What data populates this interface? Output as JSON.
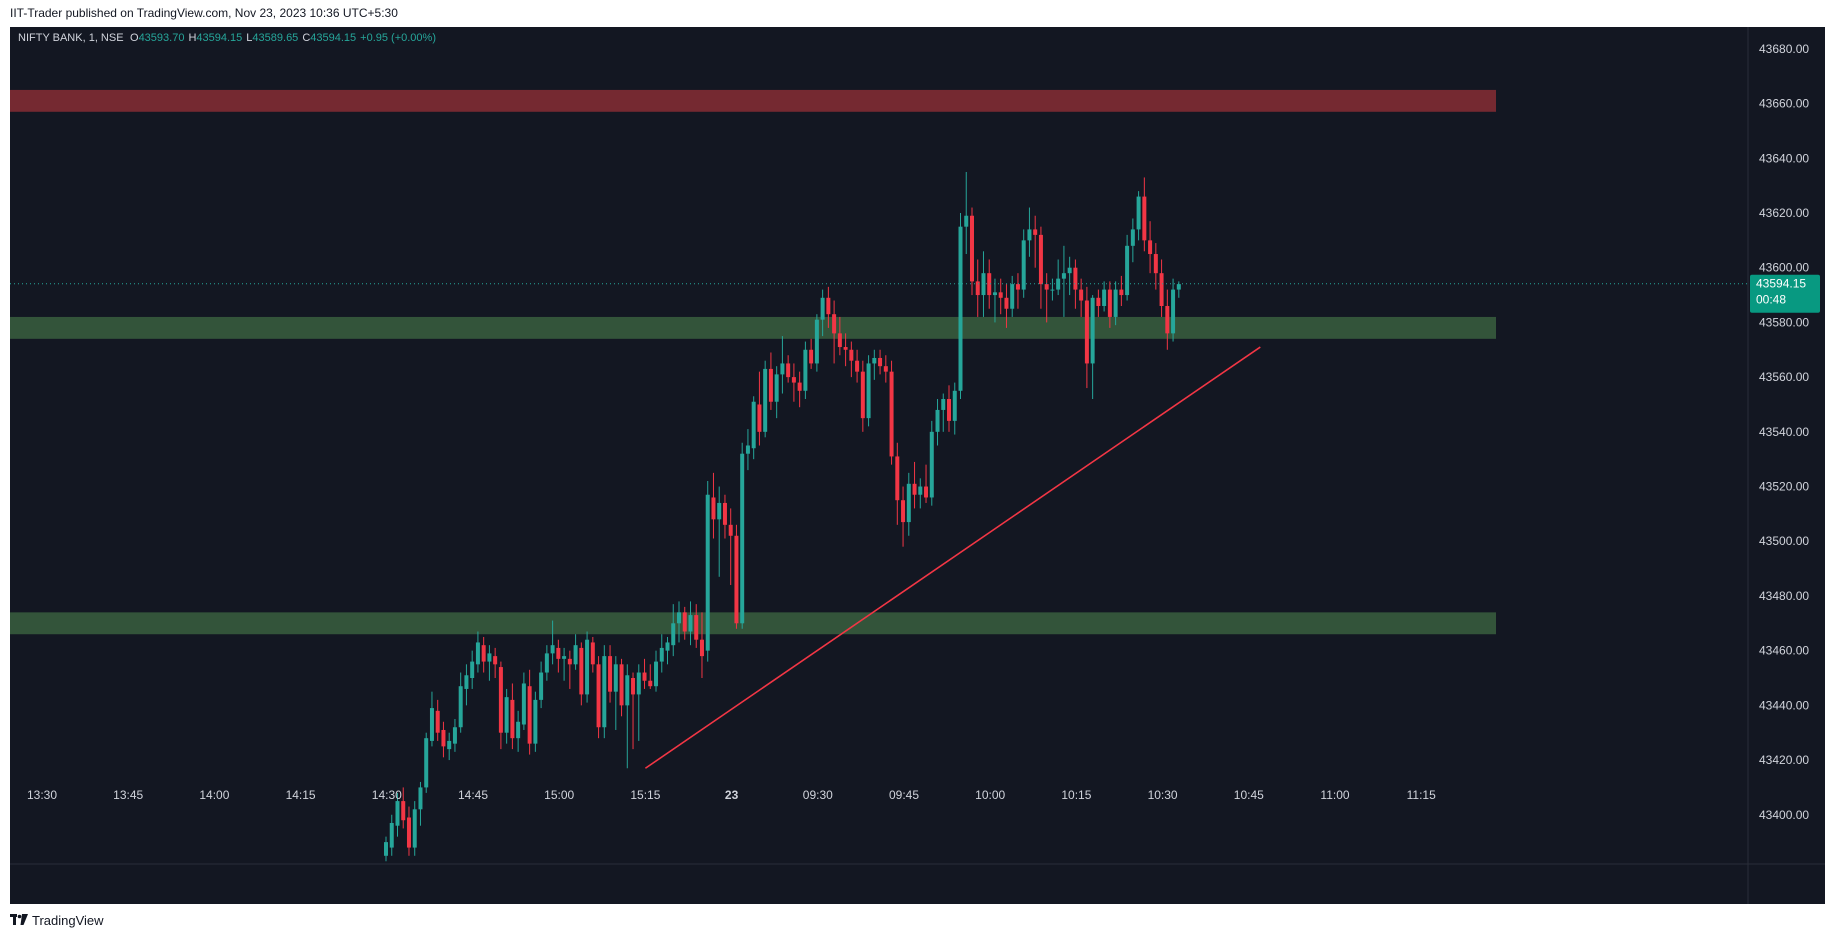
{
  "header": {
    "published_text": "IIT-Trader published on TradingView.com, Nov 23, 2023 10:36 UTC+5:30"
  },
  "footer": {
    "brand": "TradingView",
    "logo": "tradingview-logo-icon"
  },
  "colors": {
    "background": "#131722",
    "up": "#26a69a",
    "down": "#f23645",
    "supply_zone": "#7a2a33",
    "demand_zone": "#35573c",
    "trendline": "#f23645",
    "price_label_bg": "#089981",
    "axis_text": "#d1d4dc"
  },
  "legend": {
    "symbol": "NIFTY BANK, 1, NSE",
    "o_label": "O",
    "o_value": "43593.70",
    "h_label": "H",
    "h_value": "43594.15",
    "l_label": "L",
    "l_value": "43589.65",
    "c_label": "C",
    "c_value": "43594.15",
    "change": "+0.95 (+0.00%)"
  },
  "price_label": {
    "price": "43594.15",
    "countdown": "00:48"
  },
  "chart_data": {
    "type": "candlestick",
    "symbol": "NIFTY BANK",
    "interval": "1",
    "exchange": "NSE",
    "current_price": 43594.15,
    "y_range": [
      43382,
      43688
    ],
    "y_ticks": [
      "43400.00",
      "43420.00",
      "43440.00",
      "43460.00",
      "43480.00",
      "43500.00",
      "43520.00",
      "43540.00",
      "43560.00",
      "43580.00",
      "43600.00",
      "43620.00",
      "43640.00",
      "43660.00",
      "43680.00"
    ],
    "x_ticks": [
      "13:30",
      "13:45",
      "14:00",
      "14:15",
      "14:30",
      "14:45",
      "15:00",
      "15:15",
      "23",
      "09:30",
      "09:45",
      "10:00",
      "10:15",
      "10:30",
      "10:45",
      "11:00",
      "11:15"
    ],
    "grid": false,
    "zones": [
      {
        "type": "supply",
        "from": 43657,
        "to": 43665
      },
      {
        "type": "demand",
        "from": 43574,
        "to": 43582
      },
      {
        "type": "demand",
        "from": 43466,
        "to": 43474
      }
    ],
    "trendline": {
      "from": {
        "x": "15:15",
        "y": 43417
      },
      "to": {
        "x": "10:47",
        "y": 43571
      }
    },
    "candles": [
      {
        "o": 43385,
        "h": 43392,
        "l": 43383,
        "c": 43390
      },
      {
        "o": 43388,
        "h": 43400,
        "l": 43385,
        "c": 43397
      },
      {
        "o": 43396,
        "h": 43408,
        "l": 43392,
        "c": 43405
      },
      {
        "o": 43405,
        "h": 43410,
        "l": 43395,
        "c": 43398
      },
      {
        "o": 43399,
        "h": 43403,
        "l": 43385,
        "c": 43388
      },
      {
        "o": 43388,
        "h": 43405,
        "l": 43385,
        "c": 43402
      },
      {
        "o": 43402,
        "h": 43412,
        "l": 43396,
        "c": 43410
      },
      {
        "o": 43410,
        "h": 43430,
        "l": 43408,
        "c": 43428
      },
      {
        "o": 43427,
        "h": 43445,
        "l": 43425,
        "c": 43439
      },
      {
        "o": 43438,
        "h": 43442,
        "l": 43427,
        "c": 43430
      },
      {
        "o": 43431,
        "h": 43434,
        "l": 43421,
        "c": 43425
      },
      {
        "o": 43424,
        "h": 43430,
        "l": 43420,
        "c": 43427
      },
      {
        "o": 43426,
        "h": 43435,
        "l": 43423,
        "c": 43432
      },
      {
        "o": 43432,
        "h": 43452,
        "l": 43430,
        "c": 43447
      },
      {
        "o": 43446,
        "h": 43455,
        "l": 43440,
        "c": 43451
      },
      {
        "o": 43450,
        "h": 43460,
        "l": 43446,
        "c": 43456
      },
      {
        "o": 43455,
        "h": 43467,
        "l": 43452,
        "c": 43463
      },
      {
        "o": 43462,
        "h": 43465,
        "l": 43452,
        "c": 43456
      },
      {
        "o": 43456,
        "h": 43462,
        "l": 43449,
        "c": 43459
      },
      {
        "o": 43458,
        "h": 43461,
        "l": 43450,
        "c": 43455
      },
      {
        "o": 43454,
        "h": 43456,
        "l": 43424,
        "c": 43430
      },
      {
        "o": 43430,
        "h": 43446,
        "l": 43426,
        "c": 43443
      },
      {
        "o": 43442,
        "h": 43448,
        "l": 43424,
        "c": 43428
      },
      {
        "o": 43428,
        "h": 43438,
        "l": 43423,
        "c": 43434
      },
      {
        "o": 43433,
        "h": 43452,
        "l": 43431,
        "c": 43448
      },
      {
        "o": 43447,
        "h": 43453,
        "l": 43422,
        "c": 43426
      },
      {
        "o": 43426,
        "h": 43445,
        "l": 43423,
        "c": 43442
      },
      {
        "o": 43442,
        "h": 43456,
        "l": 43439,
        "c": 43452
      },
      {
        "o": 43452,
        "h": 43462,
        "l": 43449,
        "c": 43459
      },
      {
        "o": 43459,
        "h": 43471,
        "l": 43455,
        "c": 43462
      },
      {
        "o": 43461,
        "h": 43464,
        "l": 43452,
        "c": 43457
      },
      {
        "o": 43457,
        "h": 43461,
        "l": 43449,
        "c": 43458
      },
      {
        "o": 43457,
        "h": 43460,
        "l": 43446,
        "c": 43455
      },
      {
        "o": 43455,
        "h": 43466,
        "l": 43453,
        "c": 43462
      },
      {
        "o": 43461,
        "h": 43463,
        "l": 43440,
        "c": 43444
      },
      {
        "o": 43444,
        "h": 43467,
        "l": 43441,
        "c": 43464
      },
      {
        "o": 43463,
        "h": 43465,
        "l": 43452,
        "c": 43455
      },
      {
        "o": 43455,
        "h": 43458,
        "l": 43428,
        "c": 43432
      },
      {
        "o": 43432,
        "h": 43462,
        "l": 43428,
        "c": 43458
      },
      {
        "o": 43458,
        "h": 43462,
        "l": 43441,
        "c": 43445
      },
      {
        "o": 43445,
        "h": 43458,
        "l": 43431,
        "c": 43455
      },
      {
        "o": 43455,
        "h": 43457,
        "l": 43436,
        "c": 43440
      },
      {
        "o": 43440,
        "h": 43455,
        "l": 43417,
        "c": 43451
      },
      {
        "o": 43450,
        "h": 43452,
        "l": 43424,
        "c": 43444
      },
      {
        "o": 43444,
        "h": 43455,
        "l": 43427,
        "c": 43452
      },
      {
        "o": 43452,
        "h": 43457,
        "l": 43446,
        "c": 43449
      },
      {
        "o": 43449,
        "h": 43455,
        "l": 43446,
        "c": 43447
      },
      {
        "o": 43447,
        "h": 43460,
        "l": 43445,
        "c": 43456
      },
      {
        "o": 43456,
        "h": 43466,
        "l": 43452,
        "c": 43461
      },
      {
        "o": 43460,
        "h": 43465,
        "l": 43455,
        "c": 43463
      },
      {
        "o": 43462,
        "h": 43477,
        "l": 43458,
        "c": 43470
      },
      {
        "o": 43470,
        "h": 43478,
        "l": 43463,
        "c": 43474
      },
      {
        "o": 43474,
        "h": 43476,
        "l": 43464,
        "c": 43467
      },
      {
        "o": 43467,
        "h": 43478,
        "l": 43462,
        "c": 43473
      },
      {
        "o": 43473,
        "h": 43477,
        "l": 43461,
        "c": 43464
      },
      {
        "o": 43464,
        "h": 43474,
        "l": 43450,
        "c": 43458
      },
      {
        "o": 43460,
        "h": 43522,
        "l": 43456,
        "c": 43517
      },
      {
        "o": 43516,
        "h": 43525,
        "l": 43501,
        "c": 43508
      },
      {
        "o": 43508,
        "h": 43520,
        "l": 43487,
        "c": 43514
      },
      {
        "o": 43514,
        "h": 43517,
        "l": 43501,
        "c": 43506
      },
      {
        "o": 43506,
        "h": 43512,
        "l": 43484,
        "c": 43502
      },
      {
        "o": 43502,
        "h": 43506,
        "l": 43468,
        "c": 43470
      },
      {
        "o": 43470,
        "h": 43536,
        "l": 43468,
        "c": 43532
      },
      {
        "o": 43532,
        "h": 43541,
        "l": 43526,
        "c": 43535
      },
      {
        "o": 43534,
        "h": 43553,
        "l": 43530,
        "c": 43551
      },
      {
        "o": 43550,
        "h": 43562,
        "l": 43535,
        "c": 43540
      },
      {
        "o": 43540,
        "h": 43566,
        "l": 43538,
        "c": 43563
      },
      {
        "o": 43563,
        "h": 43569,
        "l": 43548,
        "c": 43551
      },
      {
        "o": 43551,
        "h": 43564,
        "l": 43545,
        "c": 43561
      },
      {
        "o": 43561,
        "h": 43575,
        "l": 43554,
        "c": 43565
      },
      {
        "o": 43565,
        "h": 43568,
        "l": 43558,
        "c": 43560
      },
      {
        "o": 43560,
        "h": 43565,
        "l": 43551,
        "c": 43558
      },
      {
        "o": 43558,
        "h": 43562,
        "l": 43549,
        "c": 43555
      },
      {
        "o": 43555,
        "h": 43573,
        "l": 43552,
        "c": 43570
      },
      {
        "o": 43570,
        "h": 43574,
        "l": 43563,
        "c": 43565
      },
      {
        "o": 43565,
        "h": 43583,
        "l": 43562,
        "c": 43581
      },
      {
        "o": 43581,
        "h": 43592,
        "l": 43575,
        "c": 43589
      },
      {
        "o": 43589,
        "h": 43593,
        "l": 43578,
        "c": 43583
      },
      {
        "o": 43583,
        "h": 43588,
        "l": 43565,
        "c": 43576
      },
      {
        "o": 43576,
        "h": 43582,
        "l": 43568,
        "c": 43571
      },
      {
        "o": 43571,
        "h": 43576,
        "l": 43564,
        "c": 43570
      },
      {
        "o": 43570,
        "h": 43573,
        "l": 43560,
        "c": 43566
      },
      {
        "o": 43566,
        "h": 43570,
        "l": 43558,
        "c": 43562
      },
      {
        "o": 43562,
        "h": 43566,
        "l": 43540,
        "c": 43545
      },
      {
        "o": 43545,
        "h": 43568,
        "l": 43542,
        "c": 43565
      },
      {
        "o": 43565,
        "h": 43570,
        "l": 43559,
        "c": 43567
      },
      {
        "o": 43567,
        "h": 43570,
        "l": 43561,
        "c": 43564
      },
      {
        "o": 43564,
        "h": 43568,
        "l": 43558,
        "c": 43562
      },
      {
        "o": 43562,
        "h": 43566,
        "l": 43528,
        "c": 43531
      },
      {
        "o": 43531,
        "h": 43536,
        "l": 43506,
        "c": 43515
      },
      {
        "o": 43515,
        "h": 43520,
        "l": 43498,
        "c": 43507
      },
      {
        "o": 43507,
        "h": 43525,
        "l": 43502,
        "c": 43521
      },
      {
        "o": 43521,
        "h": 43529,
        "l": 43512,
        "c": 43517
      },
      {
        "o": 43517,
        "h": 43523,
        "l": 43512,
        "c": 43520
      },
      {
        "o": 43520,
        "h": 43528,
        "l": 43514,
        "c": 43516
      },
      {
        "o": 43516,
        "h": 43544,
        "l": 43513,
        "c": 43540
      },
      {
        "o": 43540,
        "h": 43552,
        "l": 43535,
        "c": 43548
      },
      {
        "o": 43548,
        "h": 43554,
        "l": 43540,
        "c": 43552
      },
      {
        "o": 43552,
        "h": 43557,
        "l": 43540,
        "c": 43544
      },
      {
        "o": 43544,
        "h": 43558,
        "l": 43539,
        "c": 43555
      },
      {
        "o": 43555,
        "h": 43620,
        "l": 43552,
        "c": 43615
      },
      {
        "o": 43615,
        "h": 43635,
        "l": 43605,
        "c": 43619
      },
      {
        "o": 43619,
        "h": 43622,
        "l": 43590,
        "c": 43595
      },
      {
        "o": 43595,
        "h": 43603,
        "l": 43582,
        "c": 43590
      },
      {
        "o": 43590,
        "h": 43606,
        "l": 43582,
        "c": 43598
      },
      {
        "o": 43598,
        "h": 43603,
        "l": 43585,
        "c": 43590
      },
      {
        "o": 43590,
        "h": 43596,
        "l": 43580,
        "c": 43591
      },
      {
        "o": 43591,
        "h": 43596,
        "l": 43583,
        "c": 43589
      },
      {
        "o": 43589,
        "h": 43594,
        "l": 43578,
        "c": 43585
      },
      {
        "o": 43585,
        "h": 43597,
        "l": 43582,
        "c": 43594
      },
      {
        "o": 43594,
        "h": 43598,
        "l": 43585,
        "c": 43592
      },
      {
        "o": 43592,
        "h": 43614,
        "l": 43589,
        "c": 43610
      },
      {
        "o": 43610,
        "h": 43622,
        "l": 43604,
        "c": 43614
      },
      {
        "o": 43614,
        "h": 43619,
        "l": 43600,
        "c": 43612
      },
      {
        "o": 43612,
        "h": 43615,
        "l": 43585,
        "c": 43594
      },
      {
        "o": 43594,
        "h": 43598,
        "l": 43580,
        "c": 43592
      },
      {
        "o": 43592,
        "h": 43596,
        "l": 43588,
        "c": 43592
      },
      {
        "o": 43592,
        "h": 43603,
        "l": 43590,
        "c": 43596
      },
      {
        "o": 43596,
        "h": 43608,
        "l": 43582,
        "c": 43598
      },
      {
        "o": 43598,
        "h": 43604,
        "l": 43590,
        "c": 43600
      },
      {
        "o": 43600,
        "h": 43603,
        "l": 43585,
        "c": 43592
      },
      {
        "o": 43592,
        "h": 43596,
        "l": 43582,
        "c": 43588
      },
      {
        "o": 43588,
        "h": 43593,
        "l": 43556,
        "c": 43565
      },
      {
        "o": 43565,
        "h": 43590,
        "l": 43552,
        "c": 43589
      },
      {
        "o": 43589,
        "h": 43592,
        "l": 43582,
        "c": 43586
      },
      {
        "o": 43586,
        "h": 43595,
        "l": 43584,
        "c": 43592
      },
      {
        "o": 43592,
        "h": 43595,
        "l": 43578,
        "c": 43582
      },
      {
        "o": 43582,
        "h": 43595,
        "l": 43579,
        "c": 43592
      },
      {
        "o": 43592,
        "h": 43597,
        "l": 43586,
        "c": 43590
      },
      {
        "o": 43590,
        "h": 43612,
        "l": 43588,
        "c": 43608
      },
      {
        "o": 43608,
        "h": 43618,
        "l": 43602,
        "c": 43614
      },
      {
        "o": 43614,
        "h": 43628,
        "l": 43610,
        "c": 43626
      },
      {
        "o": 43626,
        "h": 43633,
        "l": 43606,
        "c": 43610
      },
      {
        "o": 43610,
        "h": 43617,
        "l": 43598,
        "c": 43605
      },
      {
        "o": 43605,
        "h": 43609,
        "l": 43592,
        "c": 43598
      },
      {
        "o": 43598,
        "h": 43603,
        "l": 43582,
        "c": 43586
      },
      {
        "o": 43586,
        "h": 43592,
        "l": 43570,
        "c": 43576
      },
      {
        "o": 43576,
        "h": 43596,
        "l": 43573,
        "c": 43592
      },
      {
        "o": 43592,
        "h": 43595,
        "l": 43589,
        "c": 43594
      }
    ]
  }
}
